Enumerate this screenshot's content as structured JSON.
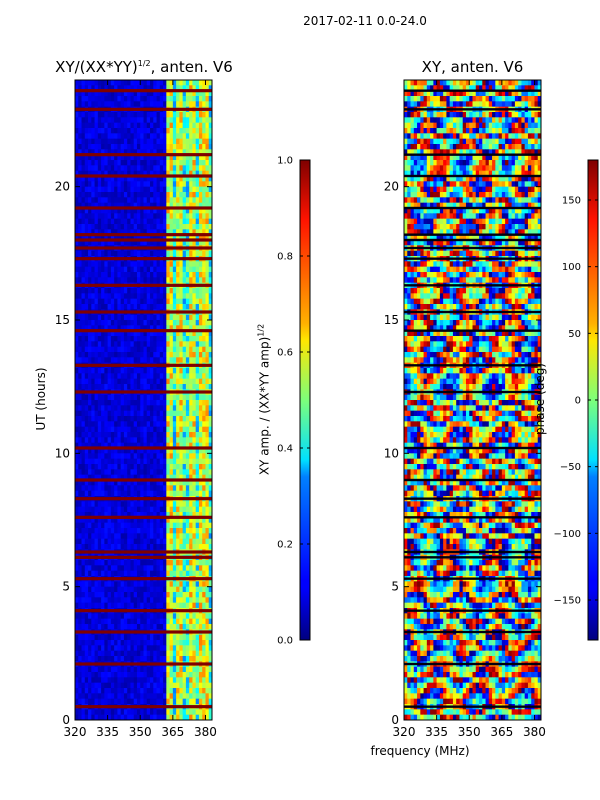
{
  "figure": {
    "suptitle": "2017-02-11 0.0-24.0",
    "shared_xlabel": "frequency (MHz)"
  },
  "chart_data": [
    {
      "type": "heatmap",
      "title_main": "XY/(XX*YY)",
      "title_exp": "1/2",
      "title_rest": ", anten. V6",
      "xlabel": "",
      "ylabel": "UT (hours)",
      "xlim": [
        320,
        383
      ],
      "ylim": [
        0,
        24
      ],
      "xticks": [
        320,
        335,
        350,
        365,
        380
      ],
      "yticks": [
        0,
        5,
        10,
        15,
        20
      ],
      "colormap": "jet",
      "colorbar": {
        "label_main": "XY amp. / (XX*YY amp)",
        "label_exp": "1/2",
        "range": [
          0.0,
          1.0
        ],
        "ticks": [
          "0.0",
          "0.2",
          "0.4",
          "0.6",
          "0.8",
          "1.0"
        ]
      },
      "flagged_rows_ut": [
        0.5,
        2.1,
        3.3,
        4.1,
        5.3,
        6.1,
        6.3,
        7.6,
        8.3,
        9.0,
        10.2,
        12.3,
        13.3,
        14.6,
        15.3,
        16.3,
        17.3,
        17.7,
        18.0,
        18.2,
        19.2,
        20.4,
        21.2,
        22.9,
        23.6
      ],
      "high_amp_band_mhz": [
        362,
        383
      ]
    },
    {
      "type": "heatmap",
      "title": "XY, anten. V6",
      "xlabel": "frequency (MHz)",
      "ylabel": "",
      "xlim": [
        320,
        383
      ],
      "ylim": [
        0,
        24
      ],
      "xticks": [
        320,
        335,
        350,
        365,
        380
      ],
      "yticks": [
        0,
        5,
        10,
        15,
        20
      ],
      "colormap": "jet",
      "colorbar": {
        "label": "phase (deg)",
        "range": [
          -180,
          180
        ],
        "ticks": [
          "150",
          "100",
          "50",
          "0",
          "−50",
          "−100",
          "−150"
        ]
      },
      "flagged_rows_ut": [
        0.5,
        2.1,
        3.3,
        4.1,
        5.3,
        6.1,
        6.3,
        7.6,
        8.3,
        9.0,
        10.2,
        12.3,
        13.3,
        14.6,
        15.3,
        16.3,
        17.3,
        17.7,
        18.0,
        18.2,
        19.2,
        20.4,
        21.2,
        22.9,
        23.6
      ]
    }
  ]
}
